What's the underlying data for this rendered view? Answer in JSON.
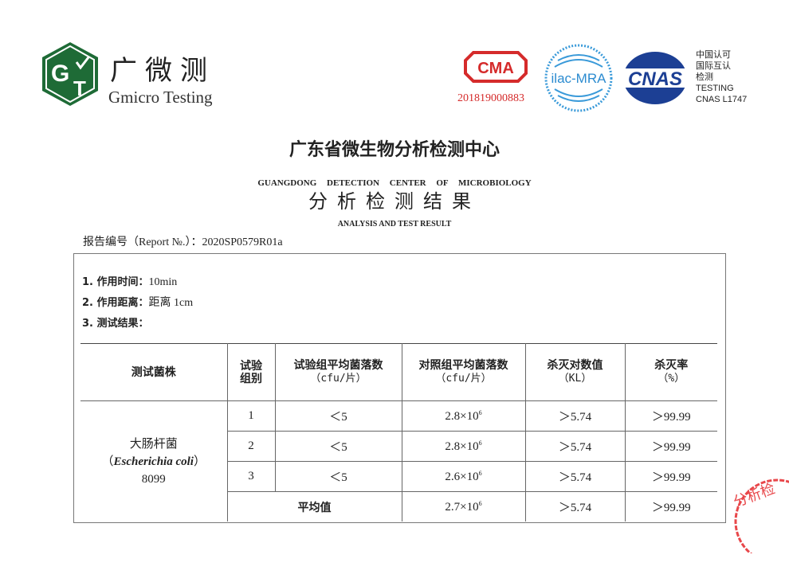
{
  "watermark": "Gmicro Testing",
  "brand": {
    "name_cn": "广微测",
    "name_en": "Gmicro Testing",
    "logo_letters": "GT",
    "color": "#1e6b36"
  },
  "certs": {
    "cma_label": "CMA",
    "cma_number": "201819000883",
    "ilac_label": "ilac-MRA",
    "cnas_label": "CNAS",
    "cnas_lines": [
      "中国认可",
      "国际互认",
      "检测",
      "TESTING",
      "CNAS L1747"
    ]
  },
  "header": {
    "title_cn": "广东省微生物分析检测中心",
    "title_en": "GUANGDONG DETECTION CENTER OF MICROBIOLOGY",
    "subtitle_cn": "分析检测结果",
    "subtitle_en": "ANALYSIS AND TEST RESULT"
  },
  "report": "报告编号（Report №.）：2020SP0579R01a",
  "items": [
    {
      "label": "1. 作用时间：",
      "value": "10min"
    },
    {
      "label": "2. 作用距离：",
      "value": "距离 1cm"
    },
    {
      "label": "3. 测试结果：",
      "value": ""
    }
  ],
  "table": {
    "headers": [
      {
        "line1": "测试菌株",
        "line2": ""
      },
      {
        "line1": "试验",
        "line2": "组别"
      },
      {
        "line1": "试验组平均菌落数",
        "line2": "（cfu/片）"
      },
      {
        "line1": "对照组平均菌落数",
        "line2": "（cfu/片）"
      },
      {
        "line1": "杀灭对数值",
        "line2": "（KL）"
      },
      {
        "line1": "杀灭率",
        "line2": "（%）"
      }
    ],
    "strain": {
      "cn": "大肠杆菌",
      "latin": "Escherichia coli",
      "open": "（",
      "close": "）",
      "code": "8099"
    },
    "rows": [
      {
        "group": "1",
        "test": "＜5",
        "control_base": "2.8×10",
        "control_exp": "6",
        "kl": "＞5.74",
        "rate": "＞99.99"
      },
      {
        "group": "2",
        "test": "＜5",
        "control_base": "2.8×10",
        "control_exp": "6",
        "kl": "＞5.74",
        "rate": "＞99.99"
      },
      {
        "group": "3",
        "test": "＜5",
        "control_base": "2.6×10",
        "control_exp": "6",
        "kl": "＞5.74",
        "rate": "＞99.99"
      }
    ],
    "average": {
      "label": "平均值",
      "control_base": "2.7×10",
      "control_exp": "6",
      "kl": "＞5.74",
      "rate": "＞99.99"
    }
  },
  "stamp_text": "分析检"
}
